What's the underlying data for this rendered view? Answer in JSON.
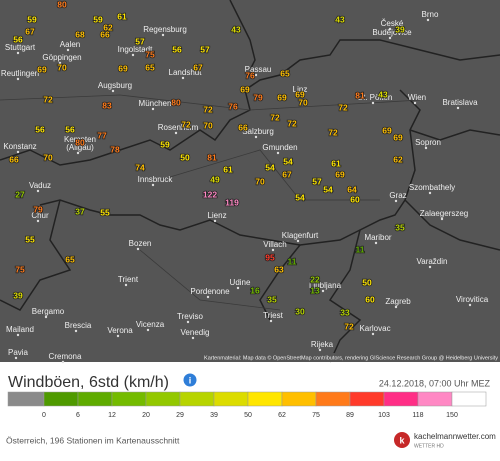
{
  "map": {
    "attribution": "Kartenmaterial: Map data © OpenStreetMap contributors, rendering GIScience Research Group @ Heidelberg University",
    "cities": [
      "Brno",
      "České",
      "Budějovice",
      "Regensburg",
      "Stuttgart",
      "Aalen",
      "Göppingen",
      "Ingolstadt",
      "Reutlingen",
      "Landshut",
      "Passau",
      "Augsburg",
      "Linz",
      "St. Pölten",
      "Wien",
      "Bratislava",
      "München",
      "Kempten",
      "(Allgäu)",
      "Rosenheim",
      "Salzburg",
      "Gmunden",
      "Konstanz",
      "Sopron",
      "Innsbruck",
      "Szombathely",
      "Graz",
      "Vaduz",
      "Lienz",
      "Zalaegerszeg",
      "Chur",
      "Bozen",
      "Klagenfurt",
      "Villach",
      "Maribor",
      "Varaždin",
      "Trient",
      "Udine",
      "Ljubljana",
      "Pordenone",
      "Zagreb",
      "Virovitica",
      "Bergamo",
      "Treviso",
      "Triest",
      "Brescia",
      "Verona",
      "Vicenza",
      "Venedig",
      "Mailand",
      "Rijeka",
      "Karlovac",
      "Pavia",
      "Cremona"
    ],
    "stations": [
      80,
      59,
      59,
      62,
      61,
      68,
      66,
      57,
      56,
      57,
      75,
      56,
      67,
      69,
      70,
      69,
      65,
      67,
      76,
      65,
      43,
      43,
      39,
      81,
      43,
      69,
      79,
      69,
      69,
      72,
      83,
      56,
      56,
      80,
      72,
      76,
      70,
      72,
      66,
      70,
      80,
      77,
      59,
      72,
      70,
      66,
      72,
      72,
      72,
      69,
      69,
      50,
      81,
      54,
      61,
      62,
      61,
      54,
      67,
      69,
      74,
      78,
      70,
      57,
      54,
      49,
      122,
      119,
      55,
      37,
      79,
      27,
      65,
      55,
      54,
      64,
      60,
      95,
      63,
      11,
      22,
      13,
      50,
      35,
      11,
      16,
      30,
      33,
      60,
      72,
      35,
      75,
      39
    ]
  },
  "legend": {
    "title": "Windböen, 6std (km/h)",
    "timestamp": "24.12.2018, 07:00 Uhr MEZ",
    "thresholds": [
      0,
      6,
      12,
      20,
      29,
      39,
      50,
      62,
      75,
      89,
      103,
      118,
      150
    ],
    "colors": [
      "#8a8a8a",
      "#4f9a00",
      "#5fab00",
      "#74bb00",
      "#93c800",
      "#b7d400",
      "#dcdc00",
      "#ffe600",
      "#ffbf00",
      "#ff7a1a",
      "#ff3a2a",
      "#ff2e86",
      "#ff88c4",
      "#ffffff"
    ]
  },
  "footer": {
    "text": "Österreich, 196 Stationen im Kartenausschnitt",
    "logo": "kachelmannwetter.com",
    "logo_sub": "WETTER HD"
  }
}
